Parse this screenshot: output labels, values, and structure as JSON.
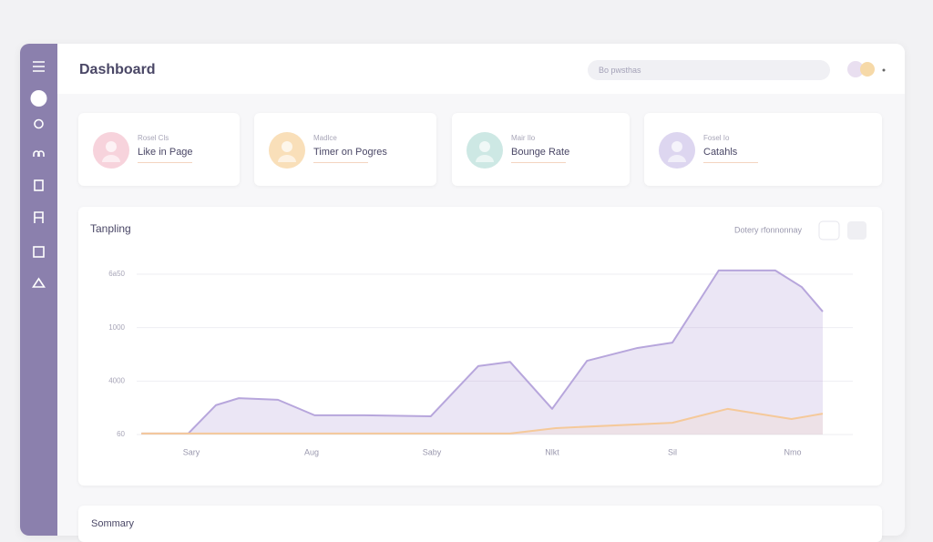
{
  "header": {
    "title": "Dashboard",
    "search": "Bo pwsthas"
  },
  "cards": [
    {
      "caption": "Rosel Cls",
      "label": "Like in Page"
    },
    {
      "caption": "Madlce",
      "label": "Timer on Pogres"
    },
    {
      "caption": "Mair Ilo",
      "label": "Bounge Rate"
    },
    {
      "caption": "Fosel Io",
      "label": "Catahls"
    }
  ],
  "chart_data": {
    "type": "area",
    "title": "Tanpling",
    "legend": "Dotery rfonnonnay",
    "xlim": [
      0,
      12
    ],
    "ylim": [
      0,
      3
    ],
    "xticks": [
      {
        "value": 1,
        "label": "Sary"
      },
      {
        "value": 3,
        "label": "Aug"
      },
      {
        "value": 5,
        "label": "Saby"
      },
      {
        "value": 7,
        "label": "Nlkt"
      },
      {
        "value": 9,
        "label": "Sil"
      },
      {
        "value": 11,
        "label": "Nmo"
      }
    ],
    "yticks": [
      {
        "value": 0,
        "label": "60"
      },
      {
        "value": 1,
        "label": "4000"
      },
      {
        "value": 2,
        "label": "1000"
      },
      {
        "value": 3,
        "label": "6a50"
      }
    ],
    "grid": true,
    "series": [
      {
        "color": "#b7a6dc",
        "x": [
          0.17,
          0.95,
          1.41,
          1.79,
          2.44,
          3.05,
          3.88,
          4.98,
          5.77,
          6.3,
          7.0,
          7.58,
          8.42,
          9.0,
          9.77,
          10.71,
          11.15,
          11.5
        ],
        "values": [
          0.02,
          0.02,
          0.55,
          0.68,
          0.65,
          0.36,
          0.36,
          0.34,
          1.28,
          1.36,
          0.48,
          1.38,
          1.62,
          1.72,
          3.07,
          3.07,
          2.76,
          2.3
        ]
      },
      {
        "color": "#f5c99a",
        "x": [
          0.17,
          6.3,
          7.06,
          9.0,
          9.92,
          10.98,
          11.5
        ],
        "values": [
          0.02,
          0.02,
          0.12,
          0.22,
          0.48,
          0.29,
          0.39
        ]
      }
    ]
  },
  "summary": {
    "title": "Sommary"
  }
}
